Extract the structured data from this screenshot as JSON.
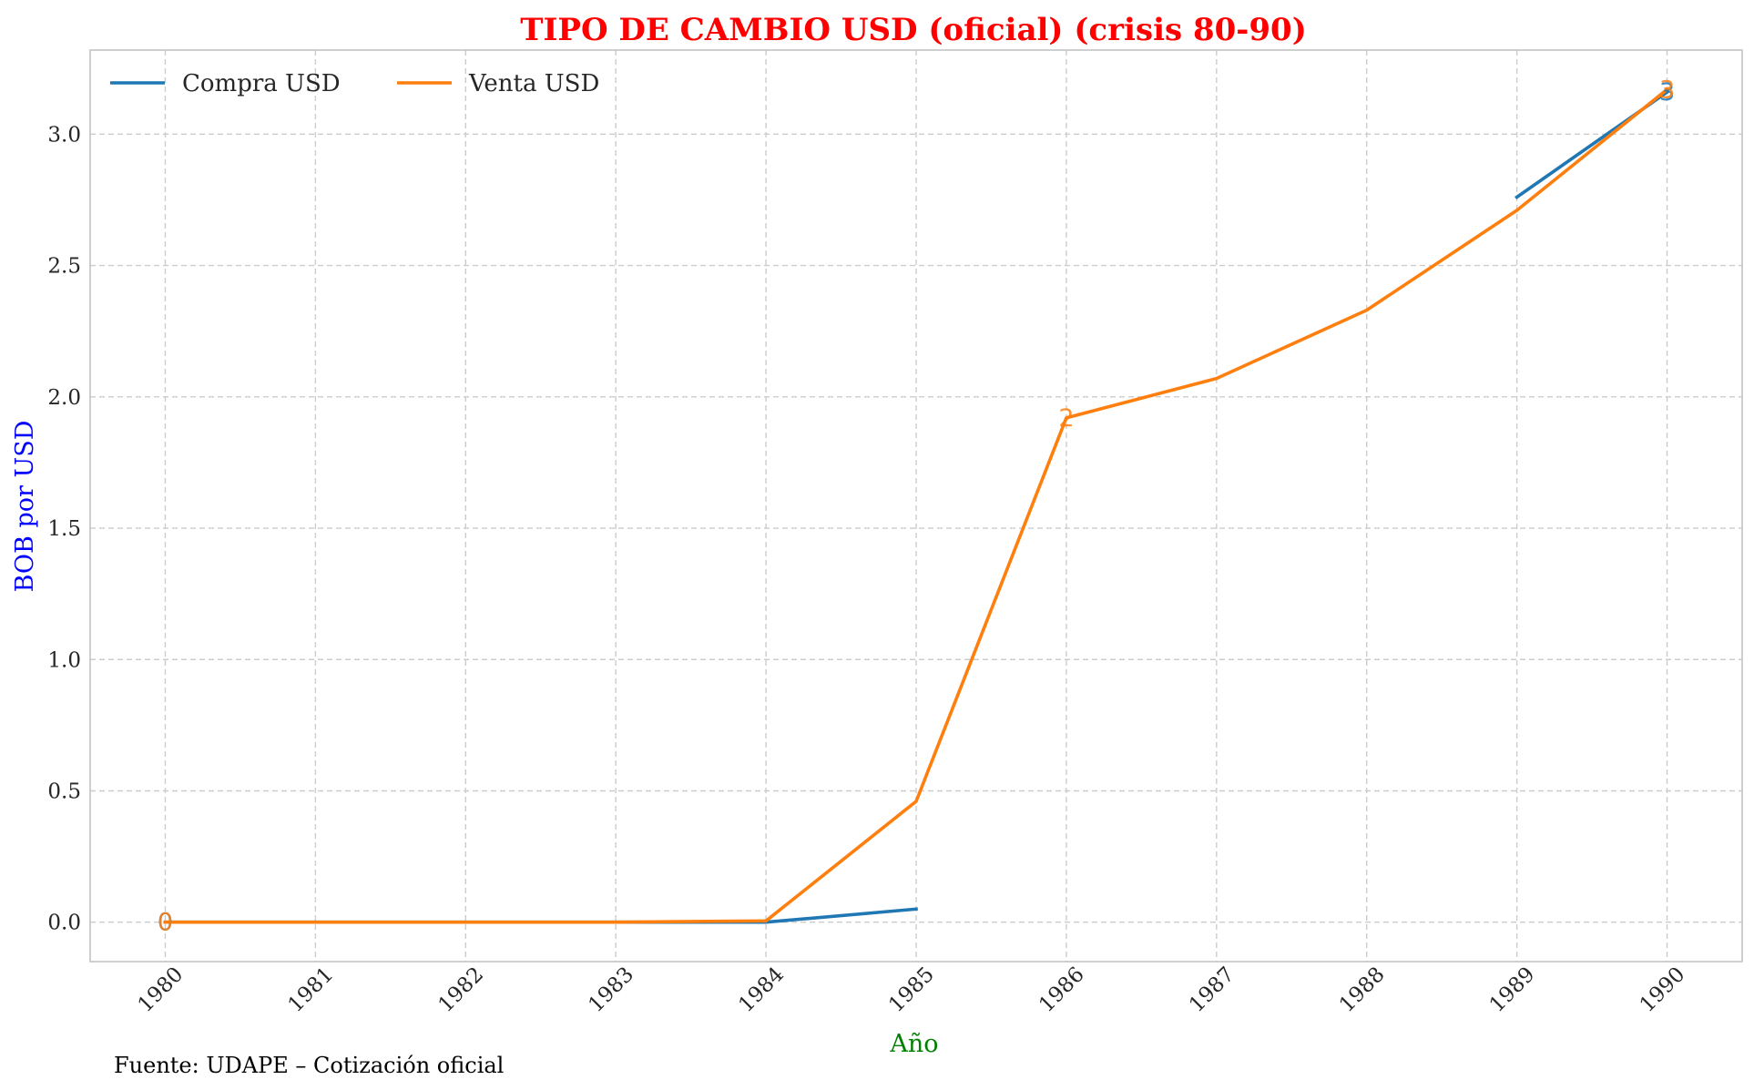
{
  "chart_data": {
    "type": "line",
    "title": "TIPO DE CAMBIO USD (oficial) (crisis 80-90)",
    "xlabel": "Año",
    "ylabel": "BOB por USD",
    "x": [
      1980,
      1981,
      1982,
      1983,
      1984,
      1985,
      1986,
      1987,
      1988,
      1989,
      1990
    ],
    "xticks": [
      "1980",
      "1981",
      "1982",
      "1983",
      "1984",
      "1985",
      "1986",
      "1987",
      "1988",
      "1989",
      "1990"
    ],
    "yticks": [
      "0.0",
      "0.5",
      "1.0",
      "1.5",
      "2.0",
      "2.5",
      "3.0"
    ],
    "ylim": [
      -0.15,
      3.32
    ],
    "xlim": [
      1979.5,
      1990.5
    ],
    "grid": true,
    "legend_position": "top-left",
    "series": [
      {
        "name": "Compra USD",
        "color": "#1f77b4",
        "values": [
          0.0,
          0.0,
          0.0,
          0.0,
          0.0,
          0.05,
          null,
          null,
          null,
          2.76,
          3.16
        ]
      },
      {
        "name": "Venta USD",
        "color": "#ff7f0e",
        "values": [
          0.0,
          0.0,
          0.0,
          0.0,
          0.005,
          0.46,
          1.92,
          2.07,
          2.33,
          2.71,
          3.17
        ]
      }
    ],
    "annotations": [
      {
        "text": "0",
        "x": 1980,
        "y": 0.0,
        "series": 0
      },
      {
        "text": "0",
        "x": 1980,
        "y": 0.0,
        "series": 1
      },
      {
        "text": "2",
        "x": 1986,
        "y": 1.92,
        "series": 1
      },
      {
        "text": "3",
        "x": 1990,
        "y": 3.16,
        "series": 0
      },
      {
        "text": "3",
        "x": 1990,
        "y": 3.17,
        "series": 1
      }
    ],
    "source": "Fuente: UDAPE – Cotización oficial"
  },
  "colors": {
    "title": "#ff0000",
    "xlabel": "#008000",
    "ylabel": "#0000ff",
    "grid": "#cccccc",
    "frame": "#bfbfbf"
  }
}
